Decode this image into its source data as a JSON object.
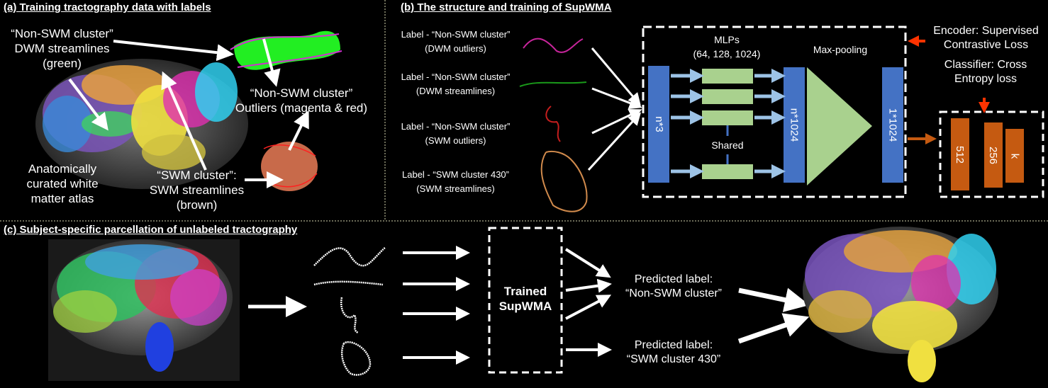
{
  "panel_a": {
    "title": "(a) Training tractography data with labels",
    "dwm_label": [
      "“Non-SWM cluster”",
      "DWM streamlines",
      "(green)"
    ],
    "outlier_label": [
      "“Non-SWM cluster”",
      "Outliers (magenta & red)"
    ],
    "atlas_label": [
      "Anatomically",
      "curated white",
      "matter atlas"
    ],
    "swm_label": [
      "“SWM cluster”:",
      "SWM streamlines",
      "(brown)"
    ]
  },
  "panel_b": {
    "title": "(b) The structure and training of SupWMA",
    "inputs": [
      {
        "line1": "Label - “Non-SWM cluster”",
        "line2": "(DWM outliers)",
        "color": "#c8259c"
      },
      {
        "line1": "Label - “Non-SWM cluster”",
        "line2": "(DWM streamlines)",
        "color": "#1a9a1a"
      },
      {
        "line1": "Label - “Non-SWM cluster”",
        "line2": "(SWM outliers)",
        "color": "#c41e1e"
      },
      {
        "line1": "Label - “SWM cluster 430”",
        "line2": "(SWM streamlines)",
        "color": "#d08a4c"
      }
    ],
    "mlp_label": [
      "MLPs",
      "(64, 128, 1024)"
    ],
    "maxpool_label": "Max-pooling",
    "shared_label": "Shared",
    "input_block": "n*3",
    "feature_block": "n*1024",
    "global_block": "1*1024",
    "encoder_label": [
      "Encoder: Supervised",
      "Contrastive Loss"
    ],
    "classifier_label": [
      "Classifier: Cross",
      "Entropy loss"
    ],
    "fc_layers": [
      "512",
      "256",
      "k"
    ],
    "colors": {
      "block_blue": "#4472c4",
      "mlp_green": "#a9d18e",
      "fc_orange": "#c55a11",
      "arrow_light": "#9dc3e6",
      "loss_arrow": "#ff3300"
    }
  },
  "panel_c": {
    "title": "(c) Subject-specific parcellation of unlabeled tractography",
    "model_label": [
      "Trained",
      "SupWMA"
    ],
    "pred1": [
      "Predicted label:",
      "“Non-SWM cluster”"
    ],
    "pred2": [
      "Predicted label:",
      "“SWM cluster 430”"
    ]
  }
}
